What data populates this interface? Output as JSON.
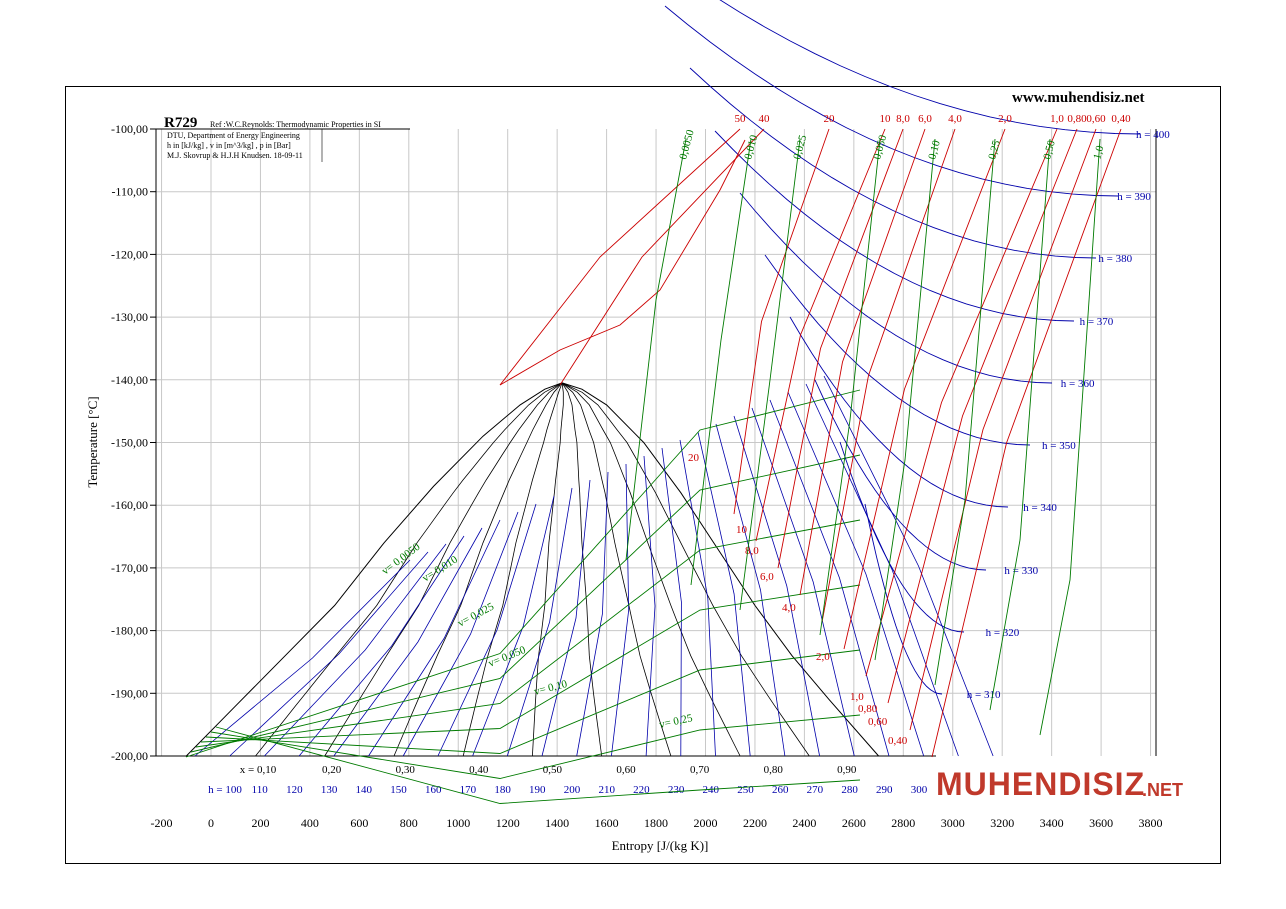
{
  "website": "www.muhendisiz.net",
  "logo": {
    "text": "MUHENDISIZ",
    "suffix": ".NET",
    "color": "#c0392b"
  },
  "chart_data": {
    "type": "line",
    "title": "R729",
    "reference": "Ref :W.C.Reynolds: Thermodynamic Properties in SI",
    "info_lines": [
      "DTU, Department of Energy Engineering",
      "h in [kJ/kg] , v in [m^3/kg] , p in [Bar]",
      "M.J. Skovrup & H.J.H Knudsen. 18-09-11"
    ],
    "xlabel": "Entropy [J/(kg K)]",
    "ylabel": "Temperature [°C]",
    "xlim": [
      -200,
      3800
    ],
    "ylim": [
      -200,
      -100
    ],
    "x_ticks": [
      "-200",
      "0",
      "200",
      "400",
      "600",
      "800",
      "1000",
      "1200",
      "1400",
      "1600",
      "1800",
      "2000",
      "2200",
      "2400",
      "2600",
      "2800",
      "3000",
      "3200",
      "3400",
      "3600",
      "3800"
    ],
    "y_ticks": [
      "-100,00",
      "-110,00",
      "-120,00",
      "-130,00",
      "-140,00",
      "-150,00",
      "-160,00",
      "-170,00",
      "-180,00",
      "-190,00",
      "-200,00"
    ],
    "quality_labels": [
      "x = 0,10",
      "0,20",
      "0,30",
      "0,40",
      "0,50",
      "0,60",
      "0,70",
      "0,80",
      "0,90"
    ],
    "enthalpy_axis_labels": [
      "h = 100",
      "110",
      "120",
      "130",
      "140",
      "150",
      "160",
      "170",
      "180",
      "190",
      "200",
      "210",
      "220",
      "230",
      "240",
      "250",
      "260",
      "270",
      "280",
      "290",
      "300"
    ],
    "enthalpy_labels": [
      "h = 400",
      "h = 390",
      "h = 380",
      "h = 370",
      "h = 360",
      "h = 350",
      "h = 340",
      "h = 330",
      "h = 320",
      "h = 310"
    ],
    "pressure_top_labels": [
      "50",
      "40",
      "20",
      "10",
      "8,0",
      "6,0",
      "4,0",
      "2,0",
      "1,0",
      "0,80",
      "0,60",
      "0,40"
    ],
    "pressure_side_labels": [
      "20",
      "10",
      "8,0",
      "6,0",
      "4,0",
      "2,0",
      "1,0",
      "0,80",
      "0,60",
      "0,40"
    ],
    "volume_top_labels": [
      "0,0050",
      "0,010",
      "0,025",
      "0,050",
      "0,10",
      "0,25",
      "0,50",
      "1,0"
    ],
    "volume_labels": [
      "v= 0,0050",
      "v= 0,010",
      "v= 0,025",
      "v= 0,050",
      "v= 0,10",
      "v= 0,25"
    ],
    "critical_point": {
      "s": 1420,
      "t": -140.5
    },
    "saturation_dome": {
      "liquid": [
        [
          -100,
          -200
        ],
        [
          100,
          -192
        ],
        [
          300,
          -184
        ],
        [
          500,
          -176
        ],
        [
          700,
          -166
        ],
        [
          900,
          -157
        ],
        [
          1100,
          -149
        ],
        [
          1250,
          -144
        ],
        [
          1350,
          -141.5
        ],
        [
          1420,
          -140.5
        ]
      ],
      "vapor": [
        [
          1420,
          -140.5
        ],
        [
          1500,
          -141.5
        ],
        [
          1600,
          -144
        ],
        [
          1750,
          -150
        ],
        [
          1900,
          -158
        ],
        [
          2050,
          -167
        ],
        [
          2200,
          -176
        ],
        [
          2350,
          -184
        ],
        [
          2500,
          -191
        ],
        [
          2700,
          -200
        ]
      ]
    },
    "colors": {
      "pressure": "#cc0000",
      "volume": "#007a00",
      "enthalpy": "#0000aa",
      "dome": "#000000",
      "grid": "#c8c8c8"
    }
  }
}
